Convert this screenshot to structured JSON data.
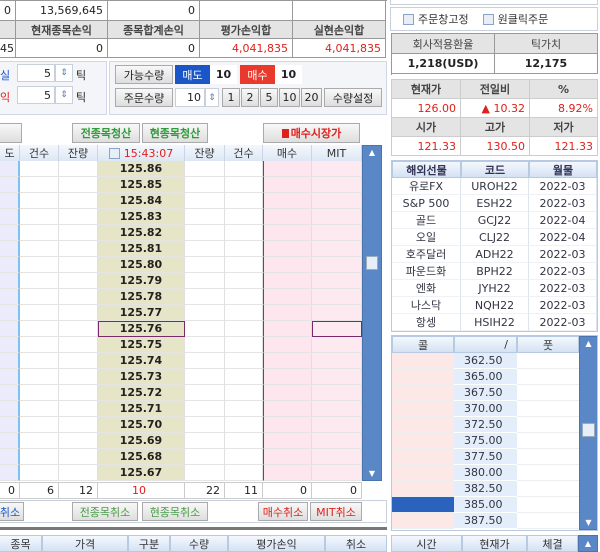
{
  "top_table": {
    "row1": [
      "0",
      "13,569,645",
      "0",
      "",
      ""
    ],
    "headers": [
      "",
      "현재종목손익",
      "종목합계손익",
      "평가손익합",
      "실현손익합"
    ],
    "row3": [
      "45",
      "0",
      "0",
      "4,041,835",
      "4,041,835"
    ]
  },
  "stops": {
    "loss_label": "실",
    "loss_value": "5",
    "profit_label": "익",
    "profit_value": "5",
    "unit": "틱"
  },
  "order": {
    "available_label": "가능수량",
    "sell_label": "매도",
    "sell_qty": "10",
    "buy_label": "매수",
    "buy_qty": "10",
    "qty_label": "주문수량",
    "qty_value": "10",
    "qty_buttons": [
      "1",
      "2",
      "5",
      "10",
      "20"
    ],
    "qty_setting": "수량설정"
  },
  "actions": {
    "clear_all": "전종목청산",
    "clear_current": "현종목청산",
    "market_buy": "매수시장가"
  },
  "ladder": {
    "headers": [
      "도",
      "건수",
      "잔량",
      "15:43:07",
      "잔량",
      "건수",
      "매수",
      "MIT"
    ],
    "prices": [
      "125.86",
      "125.85",
      "125.84",
      "125.83",
      "125.82",
      "125.81",
      "125.80",
      "125.79",
      "125.78",
      "125.77",
      "125.76",
      "125.75",
      "125.74",
      "125.73",
      "125.72",
      "125.71",
      "125.70",
      "125.69",
      "125.68",
      "125.67"
    ],
    "selected_price": "125.76",
    "totals": [
      "0",
      "6",
      "12",
      "10",
      "22",
      "11",
      "0",
      "0"
    ]
  },
  "cancel": {
    "left": "취소",
    "all": "전종목취소",
    "current": "현종목취소",
    "buy": "매수취소",
    "mit": "MIT취소"
  },
  "orders_table": {
    "headers": [
      "종목",
      "가격",
      "구분",
      "수량",
      "평가손익",
      "취소"
    ]
  },
  "right": {
    "fix_window": "주문창고정",
    "one_click": "원클릭주문",
    "rate_headers": [
      "회사적용환율",
      "틱가치"
    ],
    "rate_values": [
      "1,218(USD)",
      "12,175"
    ],
    "price_headers": [
      "현재가",
      "전일비",
      "%"
    ],
    "price_values": [
      "126.00",
      "▲ 10.32",
      "8.92%"
    ],
    "ohl_headers": [
      "시가",
      "고가",
      "저가"
    ],
    "ohl_values": [
      "121.33",
      "130.50",
      "121.33"
    ],
    "futures_headers": [
      "해외선물",
      "코드",
      "월물"
    ],
    "futures": [
      [
        "유로FX",
        "UROH22",
        "2022-03"
      ],
      [
        "S&P 500",
        "ESH22",
        "2022-03"
      ],
      [
        "골드",
        "GCJ22",
        "2022-04"
      ],
      [
        "오일",
        "CLJ22",
        "2022-04"
      ],
      [
        "호주달러",
        "ADH22",
        "2022-03"
      ],
      [
        "파운드화",
        "BPH22",
        "2022-03"
      ],
      [
        "엔화",
        "JYH22",
        "2022-03"
      ],
      [
        "나스닥",
        "NQH22",
        "2022-03"
      ],
      [
        "항셍",
        "HSIH22",
        "2022-03"
      ]
    ],
    "option_headers": [
      "콜",
      "/",
      "풋"
    ],
    "strikes": [
      "362.50",
      "365.00",
      "367.50",
      "370.00",
      "372.50",
      "375.00",
      "377.50",
      "380.00",
      "382.50",
      "385.00",
      "387.50"
    ],
    "ticks_headers": [
      "시간",
      "현재가",
      "체결"
    ]
  },
  "colors": {
    "sell": "#1a56c8",
    "buy": "#e8392c",
    "accent": "#5a88c6"
  }
}
